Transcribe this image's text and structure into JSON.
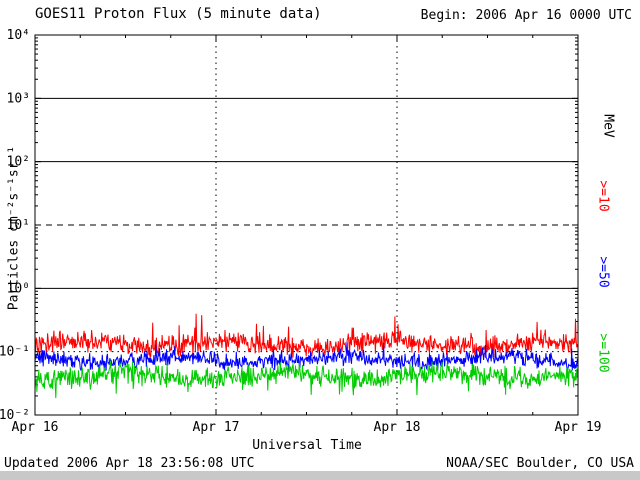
{
  "header": {
    "title": "GOES11 Proton Flux (5 minute data)",
    "begin": "Begin: 2006 Apr 16 0000 UTC"
  },
  "footer": {
    "updated": "Updated 2006 Apr 18 23:56:08 UTC",
    "source": "NOAA/SEC Boulder, CO USA"
  },
  "chart_data": {
    "type": "line",
    "title": "GOES11 Proton Flux (5 minute data)",
    "xlabel": "Universal Time",
    "ylabel": "Particles cm⁻²s⁻¹sr⁻¹",
    "right_axis_label": "MeV",
    "ylim_log10": [
      -2,
      4
    ],
    "y_tick_labels": [
      "10⁴",
      "10³",
      "10²",
      "10¹",
      "10⁰",
      "10⁻¹",
      "10⁻²"
    ],
    "y_tick_exponents": [
      4,
      3,
      2,
      1,
      0,
      -1,
      -2
    ],
    "x_ticks": [
      "Apr 16",
      "Apr 17",
      "Apr 18",
      "Apr 19"
    ],
    "time_range": [
      "2006 Apr 16 0000 UTC",
      "2006 Apr 19 0000 UTC"
    ],
    "days": 3,
    "points_per_day": 288,
    "x_minor_tick_hours": 6,
    "gridlines": {
      "solid_log10": [
        3,
        2,
        0
      ],
      "dashed_log10": [
        1
      ],
      "dotted_log10": [
        -1
      ],
      "vertical_dotted_at_day_boundaries": true
    },
    "series": [
      {
        "name": ">=10",
        "color": "#ff0000",
        "baseline": 0.13,
        "approx_range": [
          0.06,
          0.45
        ],
        "log10_spread": 0.2,
        "spike_prob": 0.04,
        "spike_mag": 0.38,
        "dip_prob": 0.0,
        "dip_mag": 0
      },
      {
        "name": ">=50",
        "color": "#0000ff",
        "baseline": 0.075,
        "approx_range": [
          0.035,
          0.18
        ],
        "log10_spread": 0.16,
        "spike_prob": 0.02,
        "spike_mag": 0.22,
        "dip_prob": 0.02,
        "dip_mag": 0.15
      },
      {
        "name": ">=100",
        "color": "#00cc00",
        "baseline": 0.042,
        "approx_range": [
          0.015,
          0.09
        ],
        "log10_spread": 0.2,
        "spike_prob": 0.01,
        "spike_mag": 0.15,
        "dip_prob": 0.06,
        "dip_mag": 0.3
      }
    ]
  }
}
